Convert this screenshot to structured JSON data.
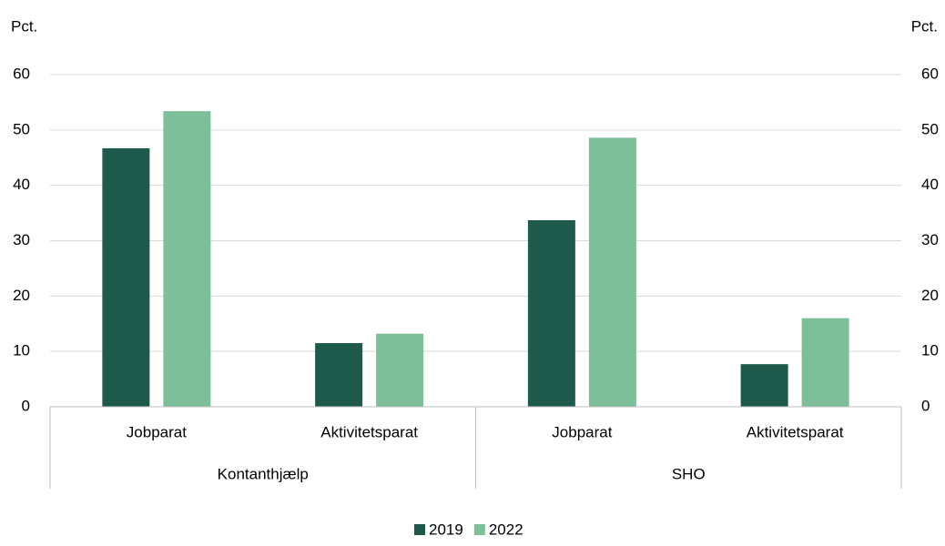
{
  "chart_data": {
    "type": "bar",
    "y_label": "Pct.",
    "y2_label": "Pct.",
    "categories": [
      "Jobparat",
      "Aktivitetsparat",
      "Jobparat",
      "Aktivitetsparat"
    ],
    "groups": [
      "Kontanthjælp",
      "SHO"
    ],
    "series": [
      {
        "name": "2019",
        "color": "#1e5a4b",
        "values": [
          46.7,
          11.5,
          33.7,
          7.7
        ]
      },
      {
        "name": "2022",
        "color": "#7dbf99",
        "values": [
          53.4,
          13.2,
          48.6,
          16.0
        ]
      }
    ],
    "ylim": [
      0,
      60
    ],
    "yticks": [
      0,
      10,
      20,
      30,
      40,
      50,
      60
    ],
    "y2lim": [
      0,
      60
    ],
    "y2ticks": [
      0,
      10,
      20,
      30,
      40,
      50,
      60
    ],
    "grid": true
  }
}
